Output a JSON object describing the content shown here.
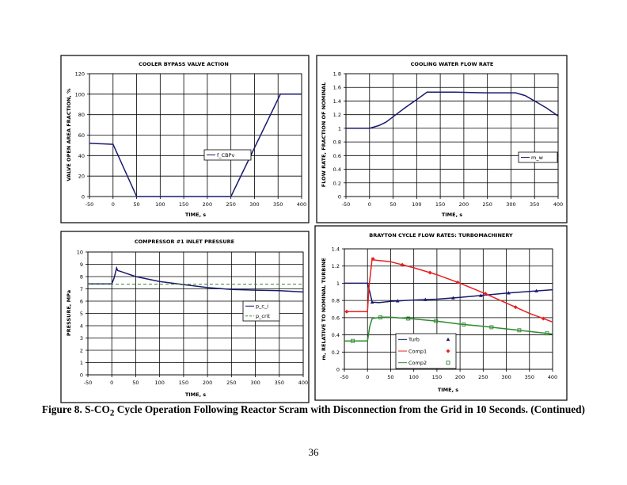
{
  "caption": {
    "prefix": "Figure 8. S-CO",
    "subscript": "2",
    "suffix": " Cycle Operation Following Reactor Scram with Disconnection from the Grid in 10 Seconds. (Continued)"
  },
  "page_number": "36",
  "chart_data": [
    {
      "type": "line",
      "title": "COOLER BYPASS VALVE ACTION",
      "xlabel": "TIME, s",
      "ylabel": "VALVE OPEN AREA FRACTION, %",
      "xlim": [
        -50,
        400
      ],
      "ylim": [
        0,
        120
      ],
      "xticks": [
        -50,
        0,
        50,
        100,
        150,
        200,
        250,
        300,
        350,
        400
      ],
      "yticks": [
        0,
        20,
        40,
        60,
        80,
        100,
        120
      ],
      "grid": true,
      "legend": "center-right",
      "series": [
        {
          "name": "f_CBPv",
          "color": "#1a1a6e",
          "style": "solid",
          "x": [
            -50,
            0,
            50,
            250,
            355,
            400
          ],
          "y": [
            52,
            51,
            0,
            0,
            100,
            100
          ]
        }
      ]
    },
    {
      "type": "line",
      "title": "COOLING WATER FLOW RATE",
      "xlabel": "TIME, s",
      "ylabel": "FLOW RATE, FRACTION OF NOMINAL",
      "xlim": [
        -50,
        400
      ],
      "ylim": [
        0,
        1.8
      ],
      "xticks": [
        -50,
        0,
        50,
        100,
        150,
        200,
        250,
        300,
        350,
        400
      ],
      "yticks": [
        0,
        0.2,
        0.4,
        0.6,
        0.8,
        1,
        1.2,
        1.4,
        1.6,
        1.8
      ],
      "grid": true,
      "legend": "right",
      "series": [
        {
          "name": "m_w",
          "color": "#1a1a6e",
          "style": "solid",
          "x": [
            -50,
            0,
            20,
            35,
            50,
            75,
            100,
            122,
            180,
            245,
            310,
            330,
            350,
            375,
            400
          ],
          "y": [
            1,
            1,
            1.04,
            1.09,
            1.17,
            1.3,
            1.42,
            1.53,
            1.53,
            1.52,
            1.52,
            1.48,
            1.4,
            1.3,
            1.18
          ]
        }
      ]
    },
    {
      "type": "line",
      "title": "COMPRESSOR #1 INLET PRESSURE",
      "xlabel": "TIME, s",
      "ylabel": "PRESSURE, MPa",
      "xlim": [
        -50,
        400
      ],
      "ylim": [
        0,
        10
      ],
      "xticks": [
        -50,
        0,
        50,
        100,
        150,
        200,
        250,
        300,
        350,
        400
      ],
      "yticks": [
        0,
        1,
        2,
        3,
        4,
        5,
        6,
        7,
        8,
        9,
        10
      ],
      "grid": true,
      "legend": "right",
      "series": [
        {
          "name": "p_c_i",
          "color": "#1a1a6e",
          "style": "solid",
          "x": [
            -50,
            0,
            5,
            10,
            12,
            20,
            50,
            100,
            150,
            200,
            250,
            300,
            350,
            400
          ],
          "y": [
            7.4,
            7.4,
            7.9,
            8.7,
            8.5,
            8.4,
            8.0,
            7.6,
            7.35,
            7.1,
            6.95,
            6.9,
            6.85,
            6.75
          ]
        },
        {
          "name": "p_crit",
          "color": "#2e8b2e",
          "style": "dashed",
          "x": [
            -50,
            400
          ],
          "y": [
            7.38,
            7.38
          ]
        }
      ]
    },
    {
      "type": "line",
      "title": "BRAYTON CYCLE FLOW RATES: TURBOMACHINERY",
      "xlabel": "TIME, s",
      "ylabel": "m, RELATIVE TO NOMINAL TURBINE",
      "xlim": [
        -50,
        400
      ],
      "ylim": [
        0,
        1.4
      ],
      "xticks": [
        -50,
        0,
        50,
        100,
        150,
        200,
        250,
        300,
        350,
        400
      ],
      "yticks": [
        0,
        0.2,
        0.4,
        0.6,
        0.8,
        1,
        1.2,
        1.4
      ],
      "grid": true,
      "legend": "bottom-left",
      "series": [
        {
          "name": "Turb",
          "color": "#1a1a6e",
          "style": "solid",
          "marker": "triangle",
          "x": [
            -50,
            0,
            5,
            10,
            25,
            50,
            100,
            150,
            200,
            250,
            300,
            350,
            400
          ],
          "y": [
            1,
            1,
            0.9,
            0.78,
            0.775,
            0.79,
            0.805,
            0.815,
            0.835,
            0.86,
            0.885,
            0.905,
            0.925
          ],
          "marker_x": [
            10,
            65,
            125,
            185,
            245,
            305,
            365
          ]
        },
        {
          "name": "Comp1",
          "color": "#e82020",
          "style": "solid",
          "marker": "diamond",
          "x": [
            -50,
            0,
            3,
            10,
            15,
            50,
            100,
            150,
            200,
            250,
            300,
            350,
            400
          ],
          "y": [
            0.67,
            0.67,
            0.95,
            1.29,
            1.27,
            1.25,
            1.18,
            1.1,
            1.0,
            0.89,
            0.77,
            0.65,
            0.55
          ],
          "marker_x": [
            -45,
            12,
            75,
            135,
            195,
            255,
            320,
            380
          ]
        },
        {
          "name": "Comp2",
          "color": "#2e8b2e",
          "style": "solid",
          "marker": "square",
          "x": [
            -50,
            0,
            5,
            10,
            30,
            50,
            100,
            150,
            200,
            250,
            300,
            350,
            400
          ],
          "y": [
            0.33,
            0.33,
            0.5,
            0.59,
            0.605,
            0.605,
            0.585,
            0.56,
            0.525,
            0.5,
            0.47,
            0.44,
            0.41
          ],
          "marker_x": [
            -32,
            28,
            88,
            148,
            208,
            268,
            328,
            388
          ]
        }
      ]
    }
  ]
}
